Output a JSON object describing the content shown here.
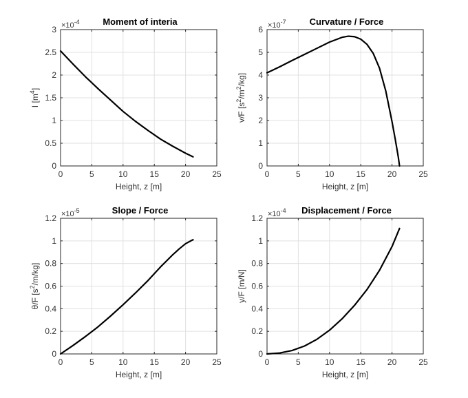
{
  "chart_data": [
    {
      "type": "line",
      "title": "Moment of interia",
      "xlabel": "Height, z [m]",
      "ylabel": "I [m^4]",
      "ylabel_parts": {
        "pre": "I [m",
        "sup": "4",
        "post": "]"
      },
      "exponent": {
        "base": "×10",
        "power": "-4"
      },
      "xlim": [
        0,
        25
      ],
      "ylim": [
        0,
        3
      ],
      "xticks": [
        "0",
        "5",
        "10",
        "15",
        "20",
        "25"
      ],
      "yticks": [
        "0",
        "0.5",
        "1",
        "1.5",
        "2",
        "2.5",
        "3"
      ],
      "grid": true,
      "series": [
        {
          "x": [
            0,
            2,
            4,
            6,
            8,
            10,
            12,
            14,
            16,
            18,
            20,
            21.2
          ],
          "y": [
            2.53,
            2.24,
            1.96,
            1.7,
            1.45,
            1.2,
            0.98,
            0.78,
            0.59,
            0.43,
            0.28,
            0.2
          ]
        }
      ]
    },
    {
      "type": "line",
      "title": "Curvature / Force",
      "xlabel": "Height, z [m]",
      "ylabel": "v/F [s^2/m^2/kg]",
      "ylabel_parts": {
        "pre": "v/F [s",
        "sup": "2",
        "mid": "/m",
        "sup2": "2",
        "post": "/kg]"
      },
      "exponent": {
        "base": "×10",
        "power": "-7"
      },
      "xlim": [
        0,
        25
      ],
      "ylim": [
        0,
        6
      ],
      "xticks": [
        "0",
        "5",
        "10",
        "15",
        "20",
        "25"
      ],
      "yticks": [
        "0",
        "1",
        "2",
        "3",
        "4",
        "5",
        "6"
      ],
      "grid": true,
      "series": [
        {
          "x": [
            0,
            2,
            4,
            6,
            8,
            10,
            12,
            13,
            14,
            15,
            16,
            17,
            18,
            19,
            20,
            20.5,
            21,
            21.2
          ],
          "y": [
            4.1,
            4.36,
            4.64,
            4.91,
            5.18,
            5.45,
            5.66,
            5.71,
            5.69,
            5.58,
            5.35,
            4.95,
            4.3,
            3.3,
            1.95,
            1.2,
            0.4,
            0.0
          ]
        }
      ]
    },
    {
      "type": "line",
      "title": "Slope / Force",
      "xlabel": "Height, z [m]",
      "ylabel": "θ/F [s^2/m/kg]",
      "ylabel_parts": {
        "pre": "θ/F [s",
        "sup": "2",
        "post": "/m/kg]"
      },
      "exponent": {
        "base": "×10",
        "power": "-5"
      },
      "xlim": [
        0,
        25
      ],
      "ylim": [
        0,
        1.2
      ],
      "xticks": [
        "0",
        "5",
        "10",
        "15",
        "20",
        "25"
      ],
      "yticks": [
        "0",
        "0.2",
        "0.4",
        "0.6",
        "0.8",
        "1",
        "1.2"
      ],
      "grid": true,
      "series": [
        {
          "x": [
            0,
            2,
            4,
            6,
            8,
            10,
            12,
            14,
            16,
            18,
            19,
            20,
            21,
            21.2
          ],
          "y": [
            0.0,
            0.075,
            0.155,
            0.24,
            0.335,
            0.435,
            0.54,
            0.65,
            0.77,
            0.88,
            0.93,
            0.975,
            1.005,
            1.01
          ]
        }
      ]
    },
    {
      "type": "line",
      "title": "Displacement / Force",
      "xlabel": "Height, z [m]",
      "ylabel": "y/F [m/N]",
      "ylabel_parts": {
        "pre": "y/F [m/N]"
      },
      "exponent": {
        "base": "×10",
        "power": "-4"
      },
      "xlim": [
        0,
        25
      ],
      "ylim": [
        0,
        1.2
      ],
      "xticks": [
        "0",
        "5",
        "10",
        "15",
        "20",
        "25"
      ],
      "yticks": [
        "0",
        "0.2",
        "0.4",
        "0.6",
        "0.8",
        "1",
        "1.2"
      ],
      "grid": true,
      "series": [
        {
          "x": [
            0,
            2,
            4,
            6,
            8,
            10,
            12,
            14,
            16,
            18,
            20,
            21.2
          ],
          "y": [
            0.0,
            0.008,
            0.03,
            0.07,
            0.13,
            0.21,
            0.31,
            0.43,
            0.57,
            0.74,
            0.95,
            1.11
          ]
        }
      ]
    }
  ]
}
